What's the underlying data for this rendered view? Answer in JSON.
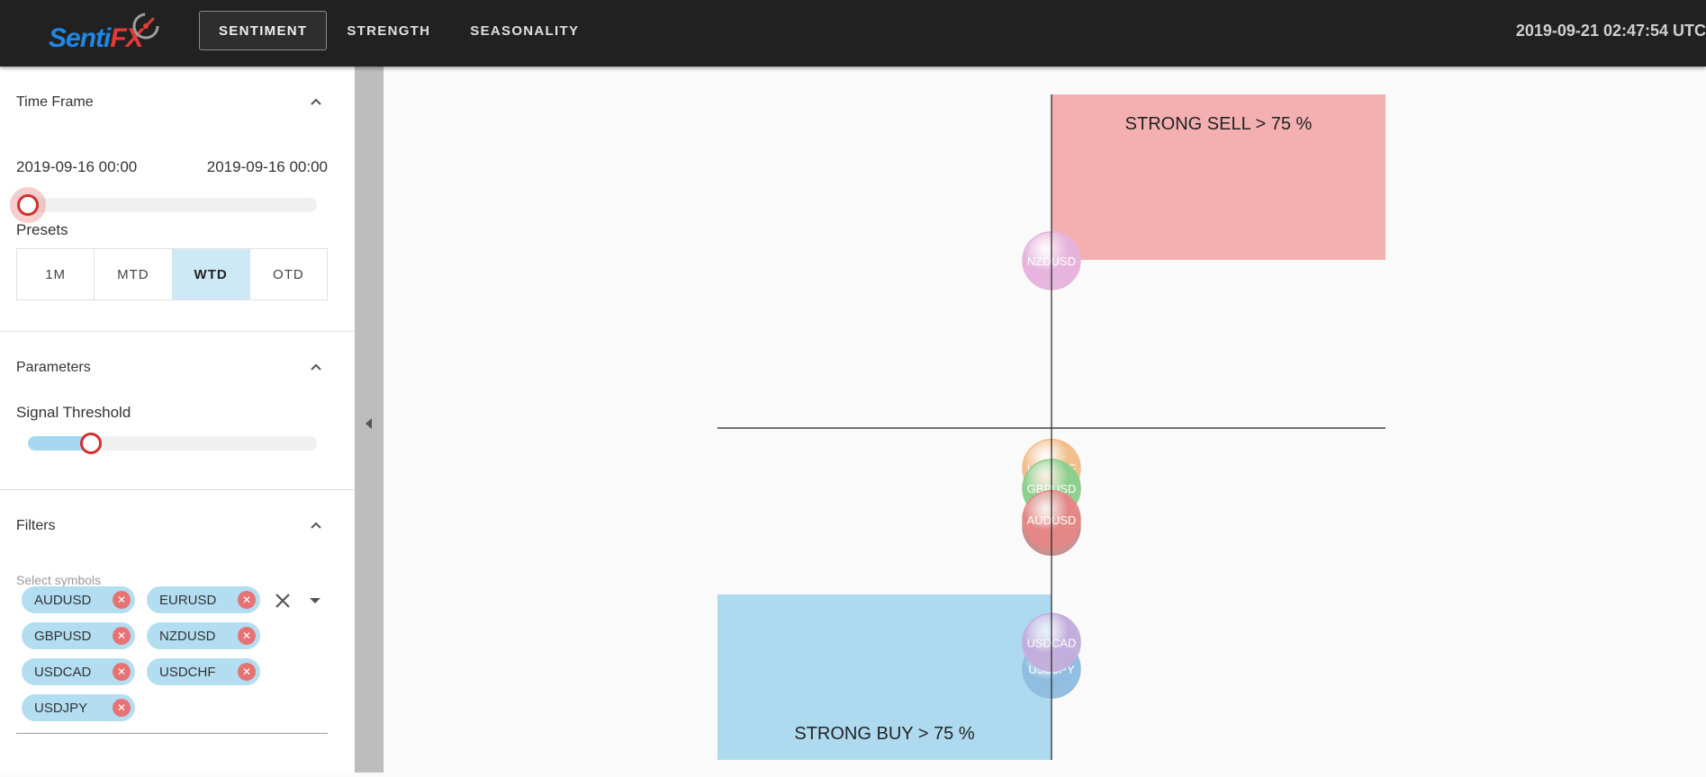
{
  "app": {
    "logo_text_1": "Senti",
    "logo_text_2": "FX",
    "nav": [
      {
        "label": "SENTIMENT",
        "active": true
      },
      {
        "label": "STRENGTH",
        "active": false
      },
      {
        "label": "SEASONALITY",
        "active": false
      }
    ],
    "clock": "2019-09-21 02:47:54 UTC"
  },
  "sidebar": {
    "time_frame": {
      "title": "Time Frame",
      "start": "2019-09-16 00:00",
      "end": "2019-09-16 00:00",
      "slider_value": 0,
      "presets_label": "Presets",
      "presets": [
        {
          "label": "1M",
          "active": false
        },
        {
          "label": "MTD",
          "active": false
        },
        {
          "label": "WTD",
          "active": true
        },
        {
          "label": "OTD",
          "active": false
        }
      ]
    },
    "parameters": {
      "title": "Parameters",
      "signal_label": "Signal Threshold",
      "signal_value": 0.5
    },
    "filters": {
      "title": "Filters",
      "select_label": "Select symbols",
      "chips": [
        "AUDUSD",
        "EURUSD",
        "GBPUSD",
        "NZDUSD",
        "USDCAD",
        "USDCHF",
        "USDJPY"
      ]
    }
  },
  "chart_data": {
    "type": "scatter",
    "zones": [
      {
        "label": "STRONG SELL > 75 %",
        "color": "#f4b0b0"
      },
      {
        "label": "STRONG BUY > 75 %",
        "color": "#aedaf0"
      }
    ],
    "ylim": [
      -100,
      100
    ],
    "points": [
      {
        "name": "NZDUSD",
        "x": 0,
        "y": 75,
        "color": "#e6b3dd"
      },
      {
        "name": "USDCHF",
        "x": 0,
        "y": -18,
        "color": "#f2be8c"
      },
      {
        "name": "GBPUSD",
        "x": 0,
        "y": -27,
        "color": "#8ccf8c"
      },
      {
        "name": "EURUSD",
        "x": 0,
        "y": -44,
        "color": "#c98b8b"
      },
      {
        "name": "AUDUSD",
        "x": 0,
        "y": -41,
        "color": "#e58787"
      },
      {
        "name": "USDJPY",
        "x": 0,
        "y": -108,
        "color": "#8fbde0"
      },
      {
        "name": "USDCAD",
        "x": 0,
        "y": -96,
        "color": "#c2aedc"
      }
    ]
  }
}
